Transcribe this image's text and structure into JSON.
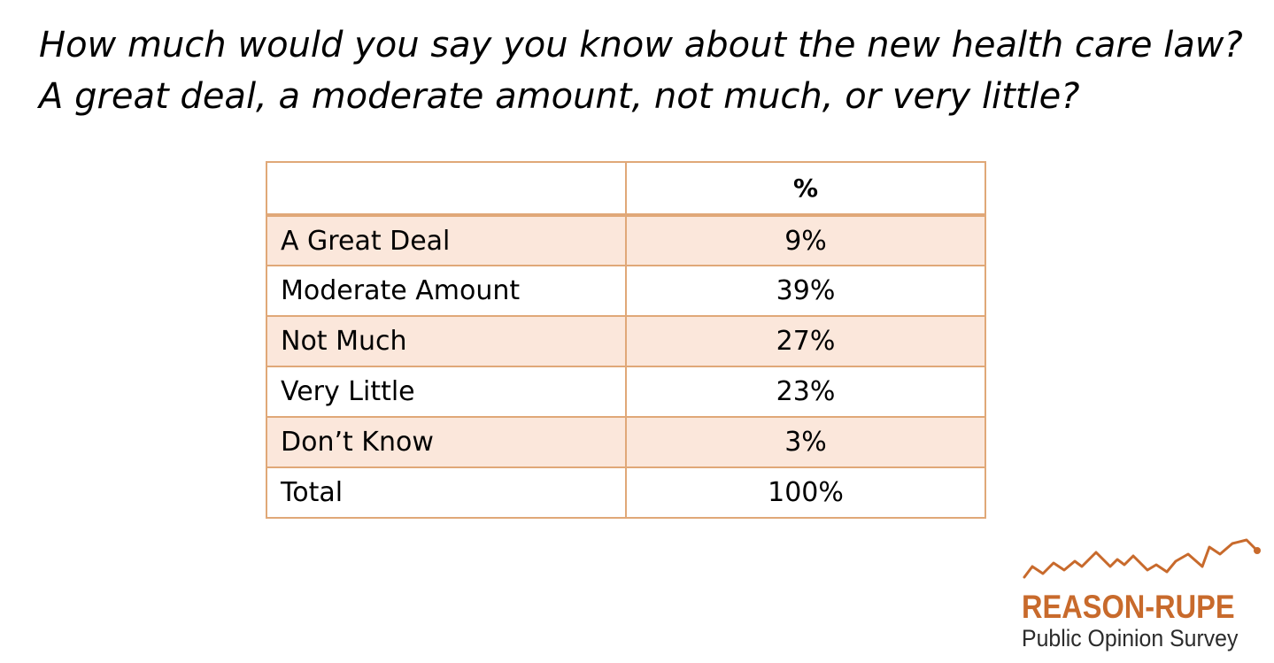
{
  "question": "How much would you say you know about the new health care law? A great deal, a moderate amount, not much, or very little?",
  "chart_data": {
    "type": "table",
    "columns": [
      "",
      "%"
    ],
    "rows": [
      {
        "label": "A Great Deal",
        "value": "9%"
      },
      {
        "label": "Moderate Amount",
        "value": "39%"
      },
      {
        "label": "Not Much",
        "value": "27%"
      },
      {
        "label": "Very Little",
        "value": "23%"
      },
      {
        "label": "Don’t Know",
        "value": "3%"
      },
      {
        "label": "Total",
        "value": "100%"
      }
    ]
  },
  "logo": {
    "brand": "REASON-RUPE",
    "subtitle": "Public Opinion Survey",
    "brand_color": "#c86a2c"
  },
  "colors": {
    "border": "#e0a878",
    "shaded_row": "#fbe7db"
  }
}
